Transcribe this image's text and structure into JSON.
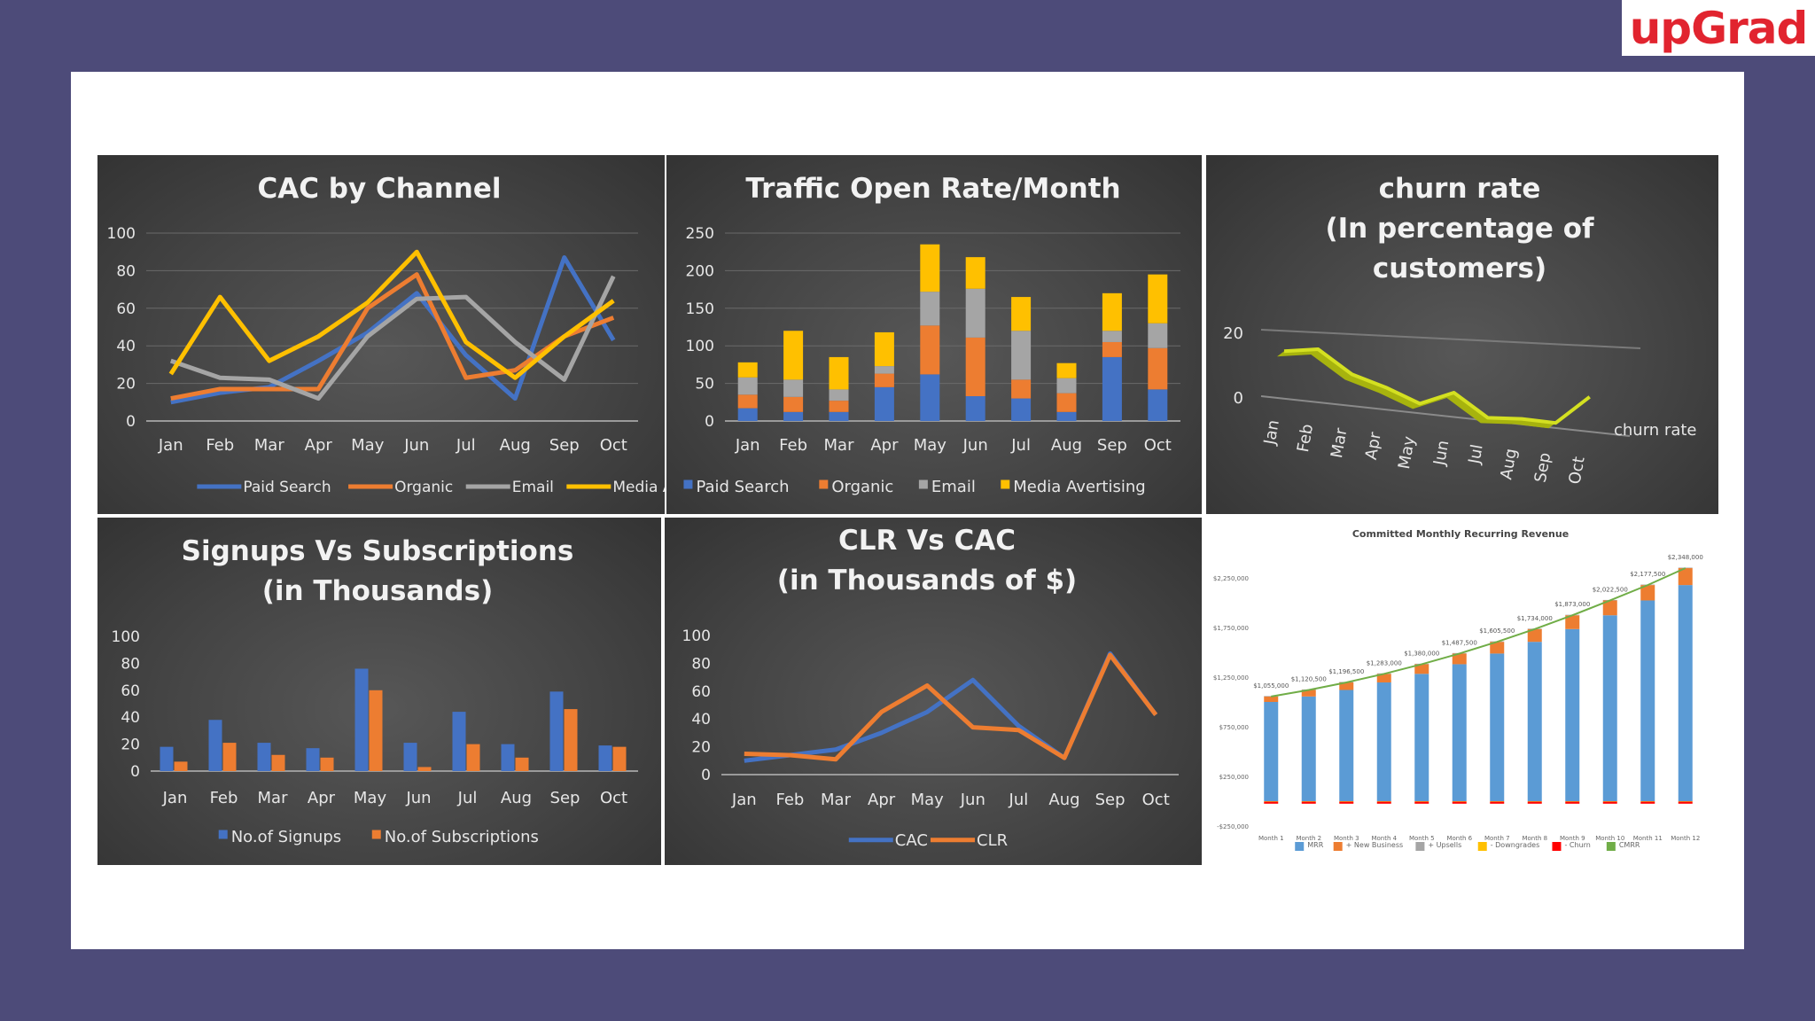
{
  "logo": {
    "text": "upGrad"
  },
  "chart_data": [
    {
      "id": "cac",
      "type": "line",
      "title": "CAC by Channel",
      "categories": [
        "Jan",
        "Feb",
        "Mar",
        "Apr",
        "May",
        "Jun",
        "Jul",
        "Aug",
        "Sep",
        "Oct"
      ],
      "ylim": [
        0,
        100
      ],
      "yticks": [
        0,
        20,
        40,
        60,
        80,
        100
      ],
      "grid": true,
      "legend": "bottom",
      "series": [
        {
          "name": "Paid Search",
          "color": "#4472c4",
          "values": [
            10,
            15,
            18,
            32,
            47,
            68,
            35,
            12,
            87,
            43
          ]
        },
        {
          "name": "Organic",
          "color": "#ed7d31",
          "values": [
            12,
            17,
            17,
            17,
            60,
            78,
            23,
            27,
            45,
            55
          ]
        },
        {
          "name": "Email",
          "color": "#a5a5a5",
          "values": [
            32,
            23,
            22,
            12,
            45,
            65,
            66,
            42,
            22,
            77
          ]
        },
        {
          "name": "Media Avertising",
          "color": "#ffc000",
          "values": [
            25,
            66,
            32,
            45,
            63,
            90,
            42,
            23,
            45,
            64
          ]
        }
      ]
    },
    {
      "id": "traffic",
      "type": "bar",
      "stacked": true,
      "title": "Traffic Open Rate/Month",
      "categories": [
        "Jan",
        "Feb",
        "Mar",
        "Apr",
        "May",
        "Jun",
        "Jul",
        "Aug",
        "Sep",
        "Oct"
      ],
      "ylim": [
        0,
        250
      ],
      "yticks": [
        0,
        50,
        100,
        150,
        200,
        250
      ],
      "grid": true,
      "legend": "bottom",
      "series": [
        {
          "name": "Paid Search",
          "color": "#4472c4",
          "values": [
            17,
            12,
            12,
            45,
            62,
            33,
            30,
            12,
            85,
            42
          ]
        },
        {
          "name": "Organic",
          "color": "#ed7d31",
          "values": [
            18,
            20,
            15,
            18,
            65,
            78,
            25,
            25,
            20,
            55
          ]
        },
        {
          "name": "Email",
          "color": "#a5a5a5",
          "values": [
            23,
            23,
            15,
            10,
            45,
            65,
            65,
            20,
            15,
            33
          ]
        },
        {
          "name": "Media Avertising",
          "color": "#ffc000",
          "values": [
            20,
            65,
            43,
            45,
            63,
            42,
            45,
            20,
            50,
            65
          ]
        }
      ]
    },
    {
      "id": "churn",
      "type": "line",
      "title": "churn rate\n(In percentage of\ncustomers)",
      "categories": [
        "Jan",
        "Feb",
        "Mar",
        "Apr",
        "May",
        "Jun",
        "Jul",
        "Aug",
        "Sep",
        "Oct"
      ],
      "yticks": [
        0,
        20
      ],
      "legend": "right",
      "series": [
        {
          "name": "churn rate",
          "color": "#d4e021",
          "values": [
            12,
            14,
            7,
            4,
            0,
            5,
            -2,
            -1,
            -1,
            9
          ]
        }
      ]
    },
    {
      "id": "signups",
      "type": "bar",
      "title": "Signups Vs Subscriptions\n(in Thousands)",
      "categories": [
        "Jan",
        "Feb",
        "Mar",
        "Apr",
        "May",
        "Jun",
        "Jul",
        "Aug",
        "Sep",
        "Oct"
      ],
      "ylim": [
        0,
        100
      ],
      "yticks": [
        0,
        20,
        40,
        60,
        80,
        100
      ],
      "grid": false,
      "legend": "bottom",
      "series": [
        {
          "name": "No.of Signups",
          "color": "#4472c4",
          "values": [
            18,
            38,
            21,
            17,
            76,
            21,
            44,
            20,
            59,
            19
          ]
        },
        {
          "name": "No.of Subscriptions",
          "color": "#ed7d31",
          "values": [
            7,
            21,
            12,
            10,
            60,
            3,
            20,
            10,
            46,
            18
          ]
        }
      ]
    },
    {
      "id": "clr",
      "type": "line",
      "title": "CLR Vs CAC\n(in Thousands of $)",
      "categories": [
        "Jan",
        "Feb",
        "Mar",
        "Apr",
        "May",
        "Jun",
        "Jul",
        "Aug",
        "Sep",
        "Oct"
      ],
      "ylim": [
        0,
        100
      ],
      "yticks": [
        0,
        20,
        40,
        60,
        80,
        100
      ],
      "grid": false,
      "legend": "bottom",
      "series": [
        {
          "name": "CAC",
          "color": "#4472c4",
          "values": [
            10,
            14,
            18,
            30,
            45,
            68,
            35,
            12,
            87,
            43
          ]
        },
        {
          "name": "CLR",
          "color": "#ed7d31",
          "values": [
            15,
            14,
            11,
            45,
            64,
            34,
            32,
            12,
            86,
            43
          ]
        }
      ]
    },
    {
      "id": "cmrr",
      "type": "bar",
      "stacked": true,
      "title": "Committed Monthly Recurring Revenue",
      "categories": [
        "Month 1",
        "Month 2",
        "Month 3",
        "Month 4",
        "Month 5",
        "Month 6",
        "Month 7",
        "Month 8",
        "Month 9",
        "Month 10",
        "Month 11",
        "Month 12"
      ],
      "yticks": [
        "-$250,000",
        "$250,000",
        "$750,000",
        "$1,250,000",
        "$1,750,000",
        "$2,250,000"
      ],
      "ylim": [
        -250000,
        2250000
      ],
      "data_labels": [
        "$1,055,000",
        "$1,120,500",
        "$1,196,500",
        "$1,283,000",
        "$1,380,000",
        "$1,487,500",
        "$1,605,500",
        "$1,734,000",
        "$1,873,000",
        "$2,022,500",
        "$2,177,500",
        "$2,348,000"
      ],
      "legend": "bottom",
      "series": [
        {
          "name": "MRR",
          "color": "#5b9bd5",
          "values": [
            1000000,
            1055000,
            1120500,
            1196500,
            1283000,
            1380000,
            1487500,
            1605500,
            1734000,
            1873000,
            2022500,
            2177500
          ]
        },
        {
          "name": "+ New Business",
          "color": "#ed7d31",
          "values": [
            55000,
            65500,
            76000,
            86500,
            97000,
            107500,
            118000,
            128500,
            139000,
            149500,
            155000,
            170500
          ]
        },
        {
          "name": "+ Upsells",
          "color": "#a5a5a5",
          "values": [
            5000,
            5000,
            5000,
            5000,
            5000,
            5000,
            5000,
            5000,
            5000,
            5000,
            5000,
            5000
          ]
        },
        {
          "name": "- Downgrades",
          "color": "#ffc000",
          "values": [
            -5000,
            -5000,
            -5000,
            -5000,
            -5000,
            -5000,
            -5000,
            -5000,
            -5000,
            -5000,
            -5000,
            -5000
          ]
        },
        {
          "name": "- Churn",
          "color": "#ff0000",
          "values": [
            -20000,
            -20000,
            -20000,
            -20000,
            -20000,
            -20000,
            -20000,
            -20000,
            -20000,
            -20000,
            -20000,
            -20000
          ]
        },
        {
          "name": "CMRR",
          "color": "#70ad47",
          "type": "line",
          "values": [
            1055000,
            1120500,
            1196500,
            1283000,
            1380000,
            1487500,
            1605500,
            1734000,
            1873000,
            2022500,
            2177500,
            2348000
          ]
        }
      ]
    }
  ]
}
